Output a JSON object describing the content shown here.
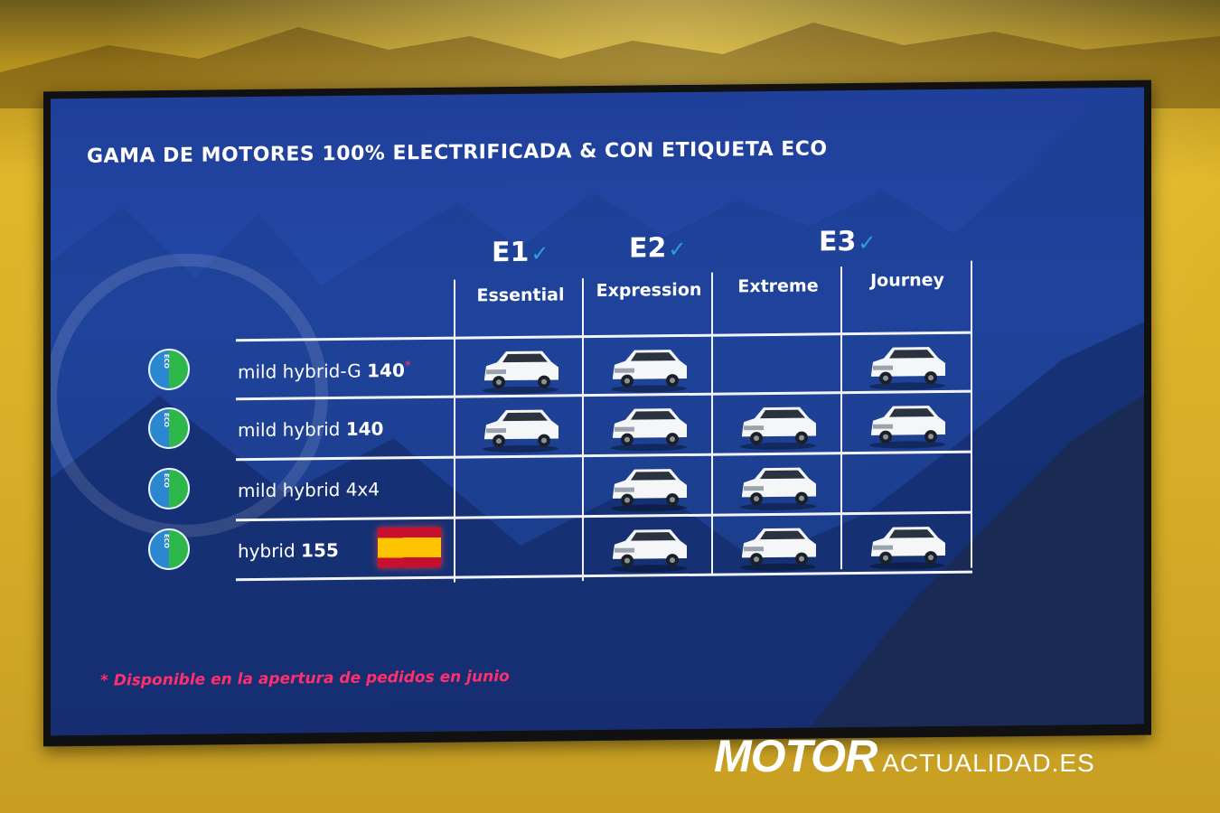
{
  "slide": {
    "title": "GAMA DE MOTORES 100% ELECTRIFICADA & CON ETIQUETA ECO",
    "groups": [
      {
        "code": "E1"
      },
      {
        "code": "E2"
      },
      {
        "code": "E3"
      }
    ],
    "trims": [
      "Essential",
      "Expression",
      "Extreme",
      "Journey"
    ],
    "engines": [
      {
        "name": "mild hybrid-G",
        "power": "140",
        "asterisk": "*",
        "availability": [
          true,
          true,
          false,
          true
        ]
      },
      {
        "name": "mild hybrid",
        "power": "140",
        "asterisk": "",
        "availability": [
          true,
          true,
          true,
          true
        ]
      },
      {
        "name": "mild hybrid 4x4",
        "power": "",
        "asterisk": "",
        "availability": [
          false,
          true,
          true,
          false
        ]
      },
      {
        "name": "hybrid",
        "power": "155",
        "asterisk": "",
        "availability": [
          false,
          true,
          true,
          true
        ]
      }
    ],
    "eco_badge_text": "ECO",
    "footnote": "* Disponible en la apertura de pedidos en junio"
  },
  "watermark": {
    "brand": "MOTOR",
    "suffix": "ACTUALIDAD.ES"
  },
  "colors": {
    "screen_blue": "#244aa8",
    "footnote_pink": "#ff2f6d",
    "eco_green": "#2db64a",
    "eco_blue": "#2a87d0",
    "wall_yellow": "#e0b72a"
  }
}
